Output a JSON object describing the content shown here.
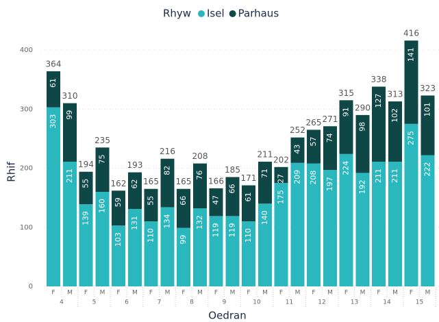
{
  "chart_data": {
    "type": "stacked_bar",
    "legend_title": "Rhyw",
    "x_label": "Oedran",
    "y_label": "Rhif",
    "categories": [
      "F",
      "M",
      "F",
      "M",
      "F",
      "M",
      "F",
      "M",
      "F",
      "M",
      "F",
      "M",
      "F",
      "M",
      "F",
      "M",
      "F",
      "M",
      "F",
      "M",
      "F",
      "M",
      "F",
      "M"
    ],
    "groups": [
      "4",
      "5",
      "6",
      "7",
      "8",
      "9",
      "10",
      "11",
      "12",
      "13",
      "14",
      "15"
    ],
    "series": [
      {
        "name": "Isel",
        "color": "#2bb7be",
        "values": [
          303,
          211,
          139,
          160,
          103,
          131,
          110,
          134,
          99,
          132,
          119,
          119,
          110,
          140,
          175,
          209,
          208,
          197,
          224,
          192,
          211,
          211,
          275,
          222
        ]
      },
      {
        "name": "Parhaus",
        "color": "#0f4747",
        "values": [
          61,
          99,
          55,
          75,
          59,
          62,
          55,
          82,
          66,
          76,
          47,
          66,
          61,
          71,
          27,
          43,
          57,
          74,
          91,
          98,
          127,
          102,
          141,
          101
        ]
      }
    ],
    "totals": [
      364,
      310,
      194,
      235,
      162,
      193,
      165,
      216,
      165,
      208,
      166,
      185,
      171,
      211,
      202,
      252,
      265,
      271,
      315,
      290,
      338,
      313,
      416,
      323
    ],
    "ylim": [
      0,
      400
    ],
    "yticks": [
      0,
      100,
      200,
      300,
      400
    ],
    "grid": true
  }
}
